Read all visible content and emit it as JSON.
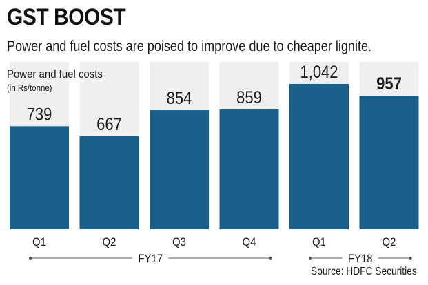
{
  "title": "GST BOOST",
  "subtitle": "Power and fuel costs are poised to improve due to cheaper lignite.",
  "source": "Source: HDFC Securities",
  "colors": {
    "bar": "#1a5f8a",
    "panel": "#efefef",
    "text": "#1a1a1a"
  },
  "chart_data": {
    "type": "bar",
    "title": "GST BOOST",
    "subtitle": "Power and fuel costs are poised to improve due to cheaper lignite.",
    "ylabel": "Power and fuel costs",
    "units": "(in Rs/tonne)",
    "categories": [
      "Q1",
      "Q2",
      "Q3",
      "Q4",
      "Q1",
      "Q2"
    ],
    "value_labels": [
      "739",
      "667",
      "854",
      "859",
      "1,042",
      "957"
    ],
    "values": [
      739,
      667,
      854,
      859,
      1042,
      957
    ],
    "highlight_index": 5,
    "groups": [
      {
        "label": "FY17",
        "start": 0,
        "end": 3
      },
      {
        "label": "FY18",
        "start": 4,
        "end": 5
      }
    ],
    "ylim": [
      0,
      1042
    ],
    "grid": false,
    "legend": "none"
  }
}
